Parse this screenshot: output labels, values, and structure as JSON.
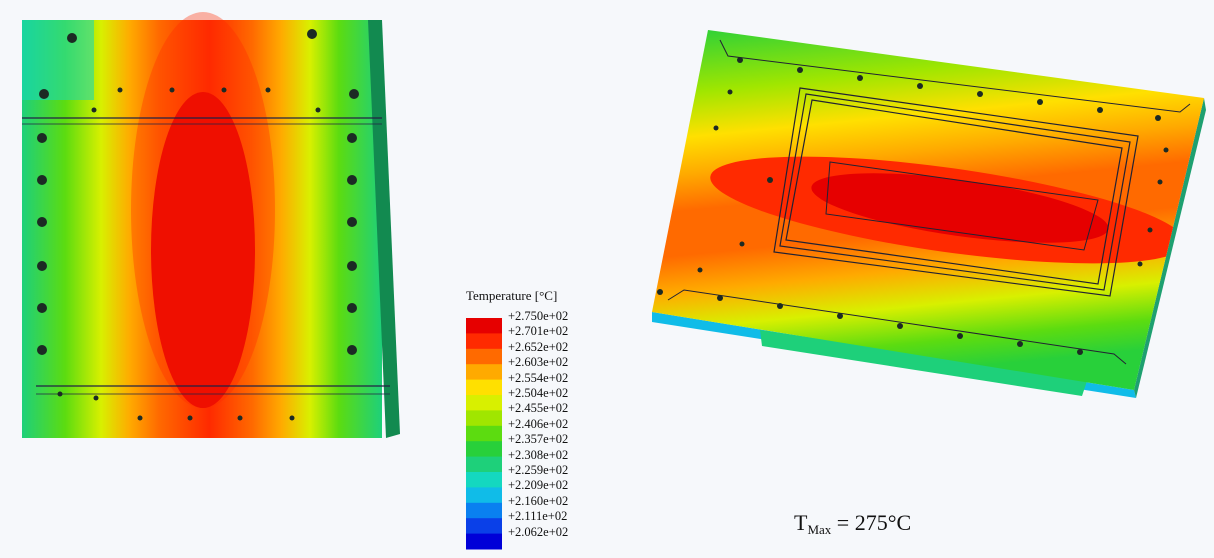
{
  "legend": {
    "title": "Temperature [°C]",
    "entries": [
      {
        "label": "+2.750e+02",
        "color": "#e60000"
      },
      {
        "label": "+2.701e+02",
        "color": "#ff2a00"
      },
      {
        "label": "+2.652e+02",
        "color": "#ff6a00"
      },
      {
        "label": "+2.603e+02",
        "color": "#ffaa00"
      },
      {
        "label": "+2.554e+02",
        "color": "#ffe000"
      },
      {
        "label": "+2.504e+02",
        "color": "#d8f000"
      },
      {
        "label": "+2.455e+02",
        "color": "#a0e600"
      },
      {
        "label": "+2.406e+02",
        "color": "#5cdc10"
      },
      {
        "label": "+2.357e+02",
        "color": "#28d03a"
      },
      {
        "label": "+2.308e+02",
        "color": "#1ed07a"
      },
      {
        "label": "+2.259e+02",
        "color": "#14d8c0"
      },
      {
        "label": "+2.209e+02",
        "color": "#10bce8"
      },
      {
        "label": "+2.160e+02",
        "color": "#0a80f0"
      },
      {
        "label": "+2.111e+02",
        "color": "#0a40e8"
      },
      {
        "label": "+2.062e+02",
        "color": "#0000d8"
      }
    ]
  },
  "annotation": {
    "prefix": "T",
    "subscript": "Max",
    "value": " = 275°C"
  }
}
